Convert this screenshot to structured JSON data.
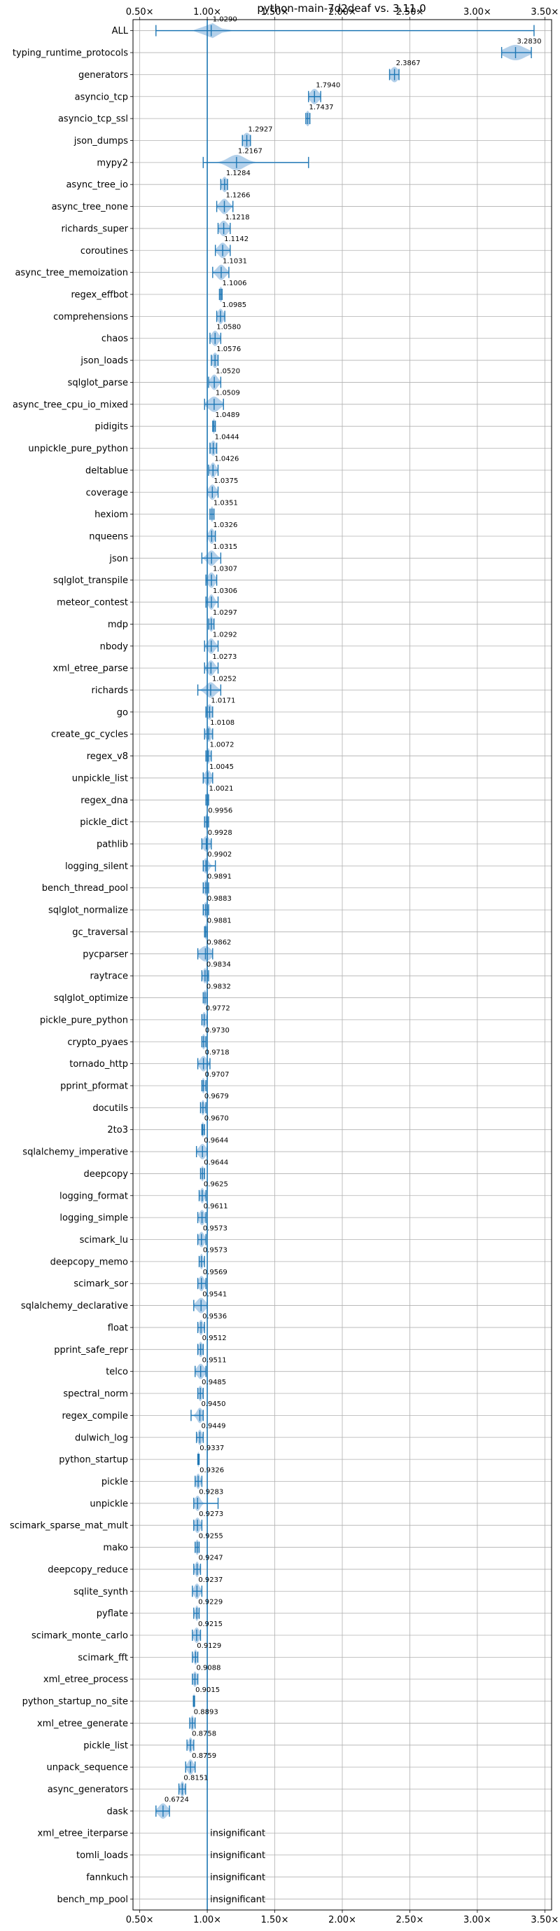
{
  "chart_data": {
    "type": "violin",
    "title": "python-main-7d2deaf vs. 3.11.0",
    "xlim": [
      0.45,
      3.55
    ],
    "xticks": [
      0.5,
      1.0,
      1.5,
      2.0,
      2.5,
      3.0,
      3.5
    ],
    "xtick_labels": [
      "0.50×",
      "1.00×",
      "1.50×",
      "2.00×",
      "2.50×",
      "3.00×",
      "3.50×"
    ],
    "xticks_top_and_bottom": true,
    "grid": true,
    "reference_line": 1.0,
    "insignificant_label": "insignificant",
    "colors": {
      "line": "#1f77b4",
      "fill": "#a6c8e6",
      "grid": "#b0b0b0"
    },
    "benchmarks": [
      {
        "name": "ALL",
        "value": 1.029,
        "label": "1.0290",
        "min": 0.62,
        "max": 3.42,
        "spread": 0.05
      },
      {
        "name": "typing_runtime_protocols",
        "value": 3.283,
        "label": "3.2830",
        "min": 3.18,
        "max": 3.4,
        "spread": 0.07
      },
      {
        "name": "generators",
        "value": 2.3867,
        "label": "2.3867",
        "min": 2.35,
        "max": 2.42,
        "spread": 0.03
      },
      {
        "name": "asyncio_tcp",
        "value": 1.794,
        "label": "1.7940",
        "min": 1.75,
        "max": 1.84,
        "spread": 0.03
      },
      {
        "name": "asyncio_tcp_ssl",
        "value": 1.7437,
        "label": "1.7437",
        "min": 1.73,
        "max": 1.76,
        "spread": 0.015
      },
      {
        "name": "json_dumps",
        "value": 1.2927,
        "label": "1.2927",
        "min": 1.26,
        "max": 1.32,
        "spread": 0.03
      },
      {
        "name": "mypy2",
        "value": 1.2167,
        "label": "1.2167",
        "min": 0.97,
        "max": 1.75,
        "spread": 0.06
      },
      {
        "name": "async_tree_io",
        "value": 1.1284,
        "label": "1.1284",
        "min": 1.1,
        "max": 1.15,
        "spread": 0.02
      },
      {
        "name": "async_tree_none",
        "value": 1.1266,
        "label": "1.1266",
        "min": 1.07,
        "max": 1.19,
        "spread": 0.03
      },
      {
        "name": "richards_super",
        "value": 1.1218,
        "label": "1.1218",
        "min": 1.08,
        "max": 1.17,
        "spread": 0.03
      },
      {
        "name": "coroutines",
        "value": 1.1142,
        "label": "1.1142",
        "min": 1.06,
        "max": 1.17,
        "spread": 0.03
      },
      {
        "name": "async_tree_memoization",
        "value": 1.1031,
        "label": "1.1031",
        "min": 1.04,
        "max": 1.16,
        "spread": 0.03
      },
      {
        "name": "regex_effbot",
        "value": 1.1006,
        "label": "1.1006",
        "min": 1.09,
        "max": 1.11,
        "spread": 0.012
      },
      {
        "name": "comprehensions",
        "value": 1.0985,
        "label": "1.0985",
        "min": 1.07,
        "max": 1.13,
        "spread": 0.02
      },
      {
        "name": "chaos",
        "value": 1.058,
        "label": "1.0580",
        "min": 1.02,
        "max": 1.1,
        "spread": 0.025
      },
      {
        "name": "json_loads",
        "value": 1.0576,
        "label": "1.0576",
        "min": 1.03,
        "max": 1.08,
        "spread": 0.02
      },
      {
        "name": "sqlglot_parse",
        "value": 1.052,
        "label": "1.0520",
        "min": 1.01,
        "max": 1.1,
        "spread": 0.025
      },
      {
        "name": "async_tree_cpu_io_mixed",
        "value": 1.0509,
        "label": "1.0509",
        "min": 0.98,
        "max": 1.12,
        "spread": 0.04
      },
      {
        "name": "pidigits",
        "value": 1.0489,
        "label": "1.0489",
        "min": 1.04,
        "max": 1.06,
        "spread": 0.008
      },
      {
        "name": "unpickle_pure_python",
        "value": 1.0444,
        "label": "1.0444",
        "min": 1.02,
        "max": 1.07,
        "spread": 0.02
      },
      {
        "name": "deltablue",
        "value": 1.0426,
        "label": "1.0426",
        "min": 1.01,
        "max": 1.08,
        "spread": 0.02
      },
      {
        "name": "coverage",
        "value": 1.0375,
        "label": "1.0375",
        "min": 1.0,
        "max": 1.08,
        "spread": 0.025
      },
      {
        "name": "hexiom",
        "value": 1.0351,
        "label": "1.0351",
        "min": 1.02,
        "max": 1.05,
        "spread": 0.012
      },
      {
        "name": "nqueens",
        "value": 1.0326,
        "label": "1.0326",
        "min": 1.0,
        "max": 1.06,
        "spread": 0.02
      },
      {
        "name": "json",
        "value": 1.0315,
        "label": "1.0315",
        "min": 0.96,
        "max": 1.1,
        "spread": 0.03
      },
      {
        "name": "sqlglot_transpile",
        "value": 1.0307,
        "label": "1.0307",
        "min": 0.99,
        "max": 1.07,
        "spread": 0.025
      },
      {
        "name": "meteor_contest",
        "value": 1.0306,
        "label": "1.0306",
        "min": 0.99,
        "max": 1.08,
        "spread": 0.02
      },
      {
        "name": "mdp",
        "value": 1.0297,
        "label": "1.0297",
        "min": 1.01,
        "max": 1.05,
        "spread": 0.015
      },
      {
        "name": "nbody",
        "value": 1.0292,
        "label": "1.0292",
        "min": 0.98,
        "max": 1.08,
        "spread": 0.025
      },
      {
        "name": "xml_etree_parse",
        "value": 1.0273,
        "label": "1.0273",
        "min": 0.98,
        "max": 1.08,
        "spread": 0.025
      },
      {
        "name": "richards",
        "value": 1.0252,
        "label": "1.0252",
        "min": 0.93,
        "max": 1.1,
        "spread": 0.035
      },
      {
        "name": "go",
        "value": 1.0171,
        "label": "1.0171",
        "min": 0.99,
        "max": 1.04,
        "spread": 0.02
      },
      {
        "name": "create_gc_cycles",
        "value": 1.0108,
        "label": "1.0108",
        "min": 0.98,
        "max": 1.04,
        "spread": 0.02
      },
      {
        "name": "regex_v8",
        "value": 1.0072,
        "label": "1.0072",
        "min": 0.99,
        "max": 1.03,
        "spread": 0.015
      },
      {
        "name": "unpickle_list",
        "value": 1.0045,
        "label": "1.0045",
        "min": 0.97,
        "max": 1.04,
        "spread": 0.025
      },
      {
        "name": "regex_dna",
        "value": 1.0021,
        "label": "1.0021",
        "min": 0.99,
        "max": 1.01,
        "spread": 0.01
      },
      {
        "name": "pickle_dict",
        "value": 0.9956,
        "label": "0.9956",
        "min": 0.98,
        "max": 1.01,
        "spread": 0.012
      },
      {
        "name": "pathlib",
        "value": 0.9928,
        "label": "0.9928",
        "min": 0.96,
        "max": 1.03,
        "spread": 0.025
      },
      {
        "name": "logging_silent",
        "value": 0.9902,
        "label": "0.9902",
        "min": 0.97,
        "max": 1.06,
        "spread": 0.02
      },
      {
        "name": "bench_thread_pool",
        "value": 0.9891,
        "label": "0.9891",
        "min": 0.97,
        "max": 1.01,
        "spread": 0.015
      },
      {
        "name": "sqlglot_normalize",
        "value": 0.9883,
        "label": "0.9883",
        "min": 0.97,
        "max": 1.01,
        "spread": 0.015
      },
      {
        "name": "gc_traversal",
        "value": 0.9881,
        "label": "0.9881",
        "min": 0.98,
        "max": 1.0,
        "spread": 0.008
      },
      {
        "name": "pycparser",
        "value": 0.9862,
        "label": "0.9862",
        "min": 0.93,
        "max": 1.04,
        "spread": 0.04
      },
      {
        "name": "raytrace",
        "value": 0.9834,
        "label": "0.9834",
        "min": 0.96,
        "max": 1.01,
        "spread": 0.015
      },
      {
        "name": "sqlglot_optimize",
        "value": 0.9832,
        "label": "0.9832",
        "min": 0.97,
        "max": 1.0,
        "spread": 0.012
      },
      {
        "name": "pickle_pure_python",
        "value": 0.9772,
        "label": "0.9772",
        "min": 0.96,
        "max": 1.0,
        "spread": 0.015
      },
      {
        "name": "crypto_pyaes",
        "value": 0.973,
        "label": "0.9730",
        "min": 0.96,
        "max": 0.99,
        "spread": 0.012
      },
      {
        "name": "tornado_http",
        "value": 0.9718,
        "label": "0.9718",
        "min": 0.93,
        "max": 1.02,
        "spread": 0.025
      },
      {
        "name": "pprint_pformat",
        "value": 0.9707,
        "label": "0.9707",
        "min": 0.96,
        "max": 0.99,
        "spread": 0.012
      },
      {
        "name": "docutils",
        "value": 0.9679,
        "label": "0.9679",
        "min": 0.95,
        "max": 0.99,
        "spread": 0.012
      },
      {
        "name": "2to3",
        "value": 0.967,
        "label": "0.9670",
        "min": 0.96,
        "max": 0.98,
        "spread": 0.008
      },
      {
        "name": "sqlalchemy_imperative",
        "value": 0.9644,
        "label": "0.9644",
        "min": 0.92,
        "max": 1.0,
        "spread": 0.025
      },
      {
        "name": "deepcopy",
        "value": 0.9644,
        "label": "0.9644",
        "min": 0.95,
        "max": 0.98,
        "spread": 0.012
      },
      {
        "name": "logging_format",
        "value": 0.9625,
        "label": "0.9625",
        "min": 0.94,
        "max": 0.99,
        "spread": 0.015
      },
      {
        "name": "logging_simple",
        "value": 0.9611,
        "label": "0.9611",
        "min": 0.93,
        "max": 0.99,
        "spread": 0.02
      },
      {
        "name": "scimark_lu",
        "value": 0.9573,
        "label": "0.9573",
        "min": 0.93,
        "max": 0.99,
        "spread": 0.02
      },
      {
        "name": "deepcopy_memo",
        "value": 0.9573,
        "label": "0.9573",
        "min": 0.94,
        "max": 0.98,
        "spread": 0.012
      },
      {
        "name": "scimark_sor",
        "value": 0.9569,
        "label": "0.9569",
        "min": 0.93,
        "max": 0.99,
        "spread": 0.02
      },
      {
        "name": "sqlalchemy_declarative",
        "value": 0.9541,
        "label": "0.9541",
        "min": 0.9,
        "max": 1.0,
        "spread": 0.03
      },
      {
        "name": "float",
        "value": 0.9536,
        "label": "0.9536",
        "min": 0.93,
        "max": 0.98,
        "spread": 0.015
      },
      {
        "name": "pprint_safe_repr",
        "value": 0.9512,
        "label": "0.9512",
        "min": 0.93,
        "max": 0.97,
        "spread": 0.015
      },
      {
        "name": "telco",
        "value": 0.9511,
        "label": "0.9511",
        "min": 0.91,
        "max": 0.99,
        "spread": 0.025
      },
      {
        "name": "spectral_norm",
        "value": 0.9485,
        "label": "0.9485",
        "min": 0.93,
        "max": 0.97,
        "spread": 0.015
      },
      {
        "name": "regex_compile",
        "value": 0.945,
        "label": "0.9450",
        "min": 0.88,
        "max": 0.97,
        "spread": 0.02
      },
      {
        "name": "dulwich_log",
        "value": 0.9449,
        "label": "0.9449",
        "min": 0.92,
        "max": 0.97,
        "spread": 0.015
      },
      {
        "name": "python_startup",
        "value": 0.9337,
        "label": "0.9337",
        "min": 0.93,
        "max": 0.94,
        "spread": 0.006
      },
      {
        "name": "pickle",
        "value": 0.9326,
        "label": "0.9326",
        "min": 0.91,
        "max": 0.96,
        "spread": 0.015
      },
      {
        "name": "unpickle",
        "value": 0.9283,
        "label": "0.9283",
        "min": 0.9,
        "max": 1.08,
        "spread": 0.02
      },
      {
        "name": "scimark_sparse_mat_mult",
        "value": 0.9273,
        "label": "0.9273",
        "min": 0.9,
        "max": 0.96,
        "spread": 0.02
      },
      {
        "name": "mako",
        "value": 0.9255,
        "label": "0.9255",
        "min": 0.91,
        "max": 0.94,
        "spread": 0.012
      },
      {
        "name": "deepcopy_reduce",
        "value": 0.9247,
        "label": "0.9247",
        "min": 0.9,
        "max": 0.95,
        "spread": 0.015
      },
      {
        "name": "sqlite_synth",
        "value": 0.9237,
        "label": "0.9237",
        "min": 0.89,
        "max": 0.96,
        "spread": 0.02
      },
      {
        "name": "pyflate",
        "value": 0.9229,
        "label": "0.9229",
        "min": 0.9,
        "max": 0.94,
        "spread": 0.012
      },
      {
        "name": "scimark_monte_carlo",
        "value": 0.9215,
        "label": "0.9215",
        "min": 0.89,
        "max": 0.95,
        "spread": 0.02
      },
      {
        "name": "scimark_fft",
        "value": 0.9129,
        "label": "0.9129",
        "min": 0.89,
        "max": 0.93,
        "spread": 0.012
      },
      {
        "name": "xml_etree_process",
        "value": 0.9088,
        "label": "0.9088",
        "min": 0.89,
        "max": 0.93,
        "spread": 0.015
      },
      {
        "name": "python_startup_no_site",
        "value": 0.9015,
        "label": "0.9015",
        "min": 0.897,
        "max": 0.906,
        "spread": 0.005
      },
      {
        "name": "xml_etree_generate",
        "value": 0.8893,
        "label": "0.8893",
        "min": 0.87,
        "max": 0.91,
        "spread": 0.012
      },
      {
        "name": "pickle_list",
        "value": 0.8758,
        "label": "0.8758",
        "min": 0.85,
        "max": 0.9,
        "spread": 0.015
      },
      {
        "name": "unpack_sequence",
        "value": 0.8759,
        "label": "0.8759",
        "min": 0.84,
        "max": 0.91,
        "spread": 0.02
      },
      {
        "name": "async_generators",
        "value": 0.8151,
        "label": "0.8151",
        "min": 0.79,
        "max": 0.84,
        "spread": 0.015
      },
      {
        "name": "dask",
        "value": 0.6724,
        "label": "0.6724",
        "min": 0.62,
        "max": 0.72,
        "spread": 0.03
      },
      {
        "name": "xml_etree_iterparse",
        "insignificant": true
      },
      {
        "name": "tomli_loads",
        "insignificant": true
      },
      {
        "name": "fannkuch",
        "insignificant": true
      },
      {
        "name": "bench_mp_pool",
        "insignificant": true
      }
    ]
  }
}
